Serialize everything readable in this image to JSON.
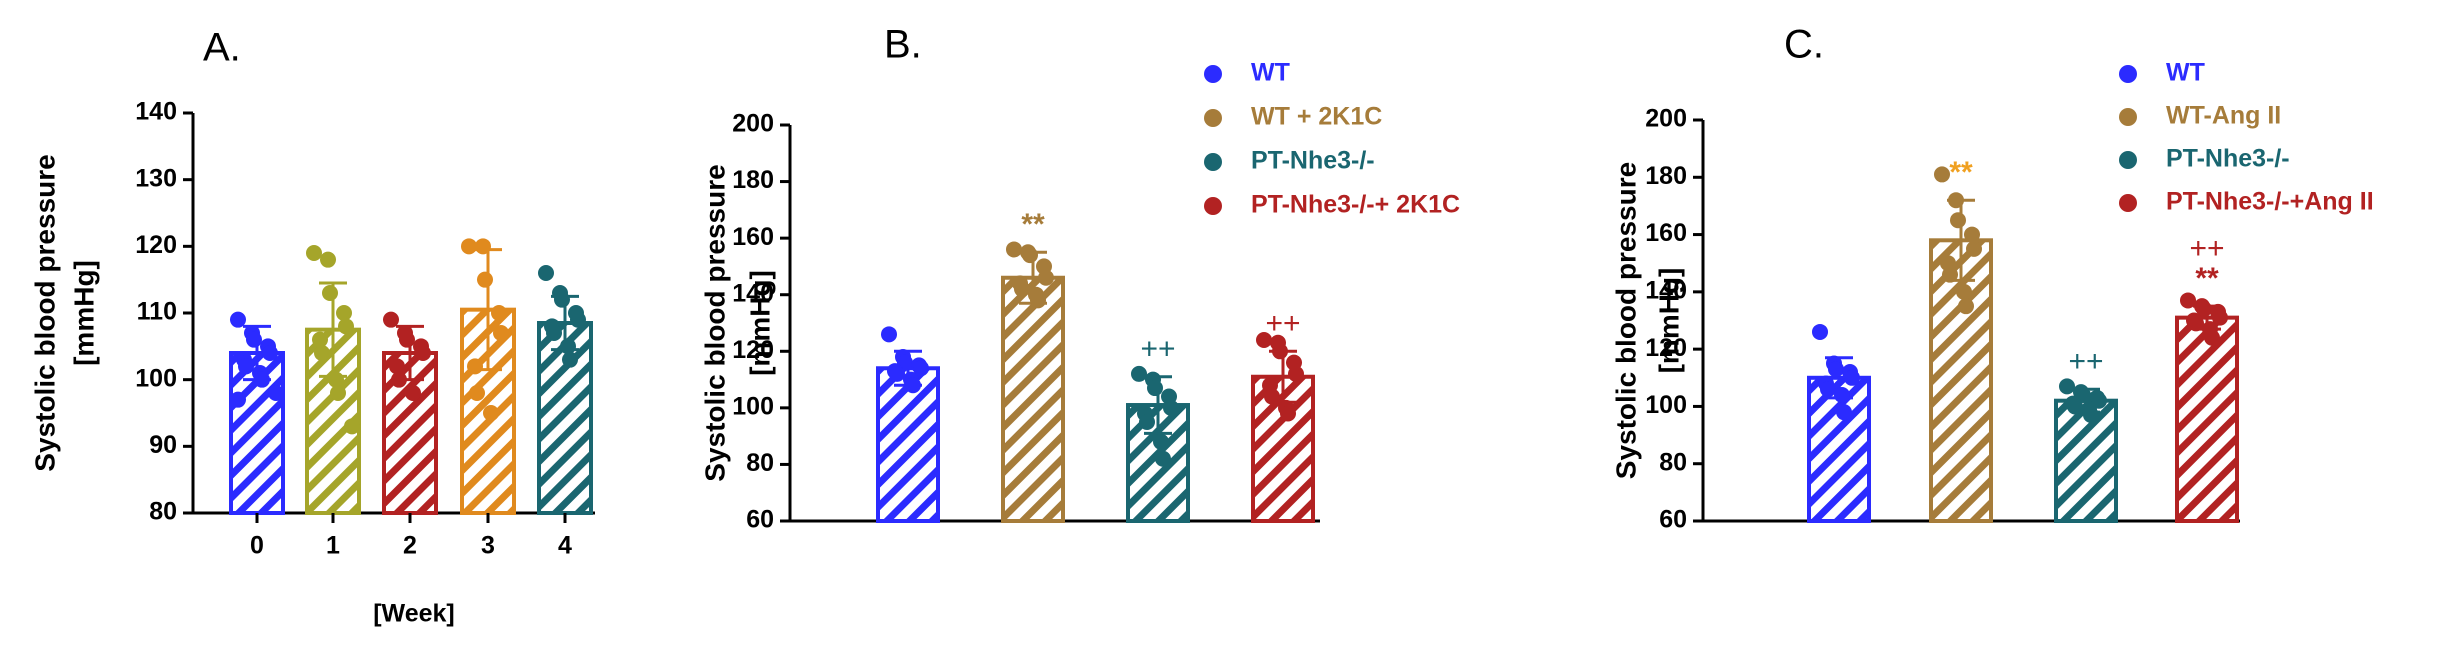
{
  "chart_data": [
    {
      "type": "bar",
      "panel_label": "A.",
      "y_label": "Systolic blood pressure",
      "y_label_unit": "[mmHg]",
      "x_label": "[Week]",
      "categories": [
        "0",
        "1",
        "2",
        "3",
        "4"
      ],
      "values": [
        104,
        107.5,
        104,
        110.5,
        108.5
      ],
      "errors": [
        4,
        7,
        4,
        9,
        4
      ],
      "colors": [
        "#2b2bff",
        "#a5a52a",
        "#b22222",
        "#e08a1e",
        "#1a6670"
      ],
      "points": [
        [
          109,
          107,
          106,
          105,
          104,
          103,
          102,
          101,
          100,
          98,
          97
        ],
        [
          119,
          118,
          113,
          110,
          108,
          106,
          104,
          100,
          98,
          93
        ],
        [
          109,
          107,
          106,
          105,
          104,
          102,
          100,
          98
        ],
        [
          120,
          120,
          115,
          110,
          107,
          102,
          98,
          95
        ],
        [
          116,
          113,
          112,
          110,
          109,
          108,
          107,
          105,
          103
        ]
      ],
      "ylim": [
        80,
        140
      ],
      "yticks": [
        80,
        90,
        100,
        110,
        120,
        130,
        140
      ]
    },
    {
      "type": "bar",
      "panel_label": "B.",
      "y_label": "Systolic blood pressure",
      "y_label_unit": "[mmHg]",
      "legend": "top-right",
      "series": [
        {
          "name": "WT",
          "color": "#2b2bff",
          "values": [
            114
          ],
          "errors": [
            6
          ],
          "points": [
            [
              126,
              118,
              116,
              115,
              114,
              113,
              112,
              110,
              108
            ]
          ],
          "annotations": []
        },
        {
          "name": "WT + 2K1C",
          "color": "#a67c3a",
          "values": [
            146
          ],
          "errors": [
            9
          ],
          "points": [
            [
              156,
              155,
              154,
              150,
              146,
              144,
              142,
              140,
              138
            ]
          ],
          "annotations": [
            {
              "text": "**",
              "color": "#a67c3a"
            }
          ]
        },
        {
          "name": "PT-Nhe3-/-",
          "color": "#1a6670",
          "values": [
            101
          ],
          "errors": [
            10
          ],
          "points": [
            [
              112,
              110,
              107,
              104,
              100,
              98,
              95,
              88,
              82
            ]
          ],
          "annotations": [
            {
              "text": "++",
              "color": "#1a6670"
            }
          ]
        },
        {
          "name": "PT-Nhe3-/-+ 2K1C",
          "color": "#b22222",
          "values": [
            111
          ],
          "errors": [
            9
          ],
          "points": [
            [
              124,
              123,
              120,
              116,
              112,
              108,
              104,
              100,
              98
            ]
          ],
          "annotations": [
            {
              "text": "++",
              "color": "#b22222"
            }
          ]
        }
      ],
      "ylim": [
        60,
        200
      ],
      "yticks": [
        60,
        80,
        100,
        120,
        140,
        160,
        180,
        200
      ]
    },
    {
      "type": "bar",
      "panel_label": "C.",
      "y_label": "Systolic blood pressure",
      "y_label_unit": "[mmHg]",
      "legend": "top-right",
      "series": [
        {
          "name": "WT",
          "color": "#2b2bff",
          "values": [
            110
          ],
          "errors": [
            7
          ],
          "points": [
            [
              126,
              115,
              113,
              112,
              110,
              108,
              106,
              104,
              98
            ]
          ],
          "annotations": []
        },
        {
          "name": "WT-Ang II",
          "color": "#a67c3a",
          "values": [
            158
          ],
          "errors": [
            14
          ],
          "points": [
            [
              181,
              172,
              165,
              160,
              155,
              150,
              146,
              140,
              135
            ]
          ],
          "annotations": [
            {
              "text": "**",
              "color": "#f0a020"
            }
          ]
        },
        {
          "name": "PT-Nhe3-/-",
          "color": "#1a6670",
          "values": [
            102
          ],
          "errors": [
            4
          ],
          "points": [
            [
              107,
              105,
              104,
              103,
              102,
              101,
              100,
              99,
              97
            ]
          ],
          "annotations": [
            {
              "text": "++",
              "color": "#1a6670"
            }
          ]
        },
        {
          "name": "PT-Nhe3-/-+Ang II",
          "color": "#b22222",
          "values": [
            131
          ],
          "errors": [
            4
          ],
          "points": [
            [
              137,
              135,
              134,
              133,
              131,
              130,
              129,
              127,
              124
            ]
          ],
          "annotations": [
            {
              "text": "**",
              "color": "#b22222"
            },
            {
              "text": "++",
              "color": "#b22222"
            }
          ]
        }
      ],
      "ylim": [
        60,
        200
      ],
      "yticks": [
        60,
        80,
        100,
        120,
        140,
        160,
        180,
        200
      ]
    }
  ]
}
